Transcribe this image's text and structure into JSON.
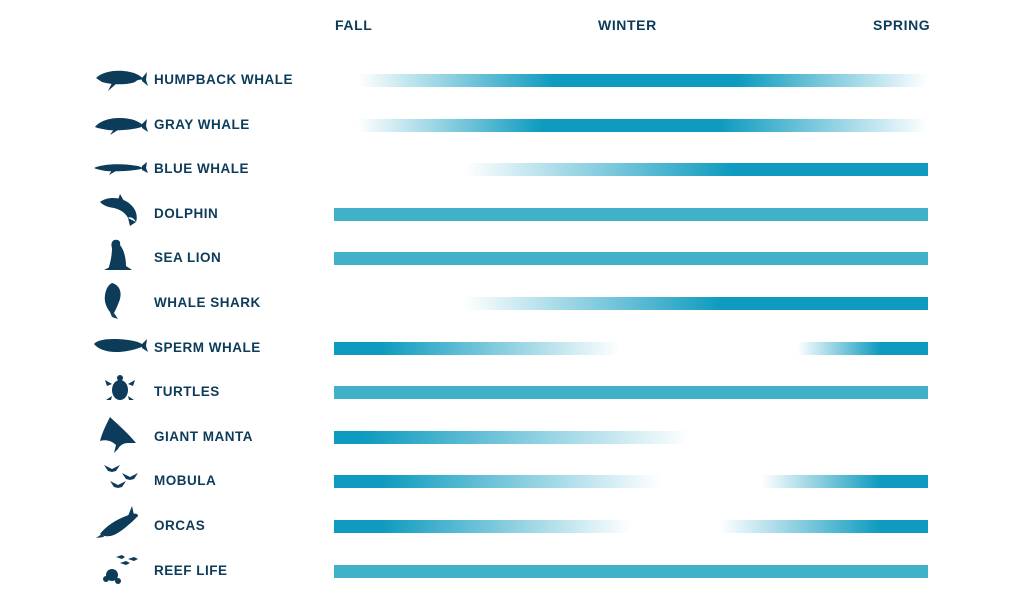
{
  "chart_data": {
    "type": "gradient-timeline",
    "seasons": [
      "FALL",
      "WINTER",
      "SPRING"
    ],
    "colors": {
      "bar": "#0e9bbf",
      "solid": "#41b0c9",
      "text": "#0d3b5a"
    },
    "species": [
      {
        "name": "HUMPBACK WHALE",
        "icon": "humpback-whale-icon",
        "peak": [
          0.37,
          0.68
        ],
        "fade_start": 0.04,
        "fade_end": 1.0
      },
      {
        "name": "GRAY WHALE",
        "icon": "gray-whale-icon",
        "peak": [
          0.35,
          0.65
        ],
        "fade_start": 0.04,
        "fade_end": 1.0
      },
      {
        "name": "BLUE WHALE",
        "icon": "blue-whale-icon",
        "peak": [
          0.67,
          1.0
        ],
        "fade_start": 0.22
      },
      {
        "name": "DOLPHIN",
        "icon": "dolphin-icon",
        "solid": true
      },
      {
        "name": "SEA LION",
        "icon": "sea-lion-icon",
        "solid": true
      },
      {
        "name": "WHALE SHARK",
        "icon": "whale-shark-icon",
        "peak": [
          0.65,
          1.0
        ],
        "fade_start": 0.22
      },
      {
        "name": "SPERM WHALE",
        "icon": "sperm-whale-icon",
        "edges": true,
        "fade_mid": [
          0.48,
          0.78
        ]
      },
      {
        "name": "TURTLES",
        "icon": "turtle-icon",
        "solid": true
      },
      {
        "name": "GIANT MANTA",
        "icon": "giant-manta-icon",
        "peak": [
          0.0,
          0.05
        ],
        "fade_end": 0.6
      },
      {
        "name": "MOBULA",
        "icon": "mobula-icon",
        "edges": true,
        "fade_mid": [
          0.55,
          0.72
        ]
      },
      {
        "name": "ORCAS",
        "icon": "orca-icon",
        "edges": true,
        "fade_mid": [
          0.5,
          0.65
        ]
      },
      {
        "name": "REEF LIFE",
        "icon": "reef-life-icon",
        "solid": true
      }
    ]
  }
}
